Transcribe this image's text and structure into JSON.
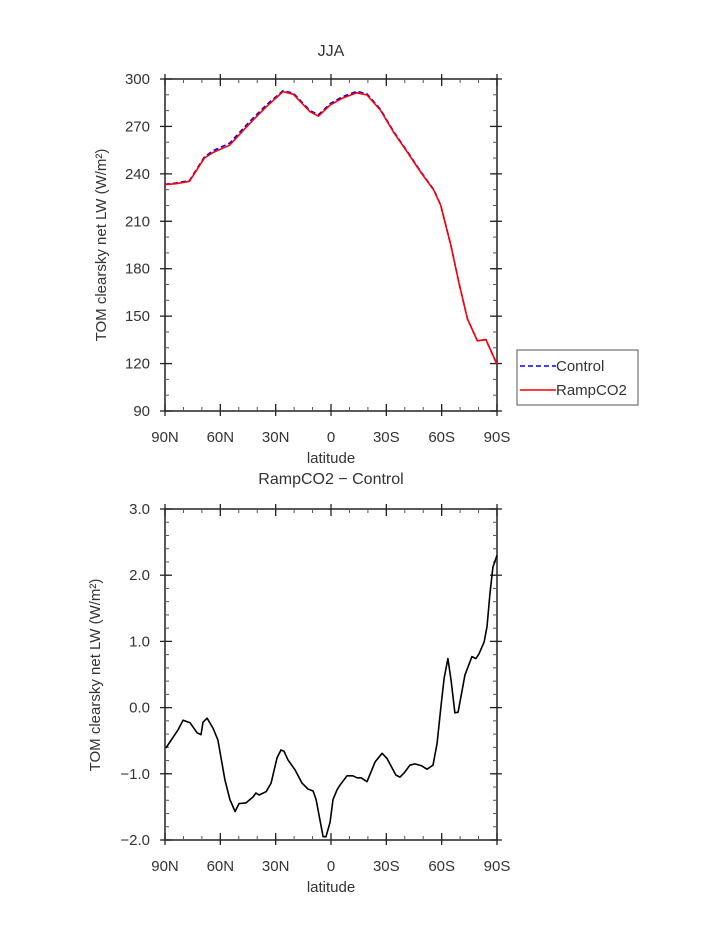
{
  "chart_data": [
    {
      "type": "line",
      "title": "JJA",
      "xlabel": "latitude",
      "ylabel": "TOM clearsky net LW (W/m²)",
      "xlim": [
        90,
        -90
      ],
      "ylim": [
        90,
        300
      ],
      "xticks": [
        90,
        60,
        30,
        0,
        -30,
        -60,
        -90
      ],
      "xtick_labels": [
        "90N",
        "60N",
        "30N",
        "0",
        "30S",
        "60S",
        "90S"
      ],
      "yticks": [
        90,
        120,
        150,
        180,
        210,
        240,
        270,
        300
      ],
      "ytick_labels": [
        "90",
        "120",
        "150",
        "180",
        "210",
        "240",
        "270",
        "300"
      ],
      "legend_position": "right",
      "grid": false,
      "x": [
        90,
        84,
        76.7,
        68.6,
        64,
        55,
        44,
        35,
        26,
        20.4,
        11.4,
        6.8,
        0.5,
        -5.9,
        -14,
        -19.5,
        -26.8,
        -34,
        -41.3,
        -48.6,
        -55.8,
        -59.5,
        -65,
        -69.5,
        -74,
        -79.4,
        -84,
        -90
      ],
      "series": [
        {
          "name": "Control",
          "color": "#0000ff",
          "dash": "dashed",
          "values": [
            233.4,
            234.2,
            235.8,
            250.8,
            254.6,
            259.4,
            273.2,
            283.6,
            292.6,
            291.0,
            280.0,
            277.4,
            284.4,
            288.6,
            292.2,
            290.6,
            280.9,
            266.7,
            254.3,
            241.6,
            229.9,
            220.3,
            194.8,
            170.5,
            148.2,
            134.4,
            135.2,
            119.4
          ]
        },
        {
          "name": "RampCO2",
          "color": "#ff0000",
          "dash": "solid",
          "values": [
            233.2,
            233.8,
            235.3,
            250.1,
            253.5,
            258.1,
            271.9,
            282.5,
            292.0,
            290.3,
            279.3,
            276.5,
            283.5,
            287.7,
            291.3,
            289.9,
            280.3,
            266.2,
            253.9,
            241.2,
            229.6,
            220.1,
            194.7,
            170.4,
            148.2,
            134.4,
            135.1,
            119.7
          ]
        }
      ]
    },
    {
      "type": "line",
      "title": "RampCO2 − Control",
      "xlabel": "latitude",
      "ylabel": "TOM clearsky net LW (W/m²)",
      "xlim": [
        90,
        -90
      ],
      "ylim": [
        -2.0,
        3.0
      ],
      "xticks": [
        90,
        60,
        30,
        0,
        -30,
        -60,
        -90
      ],
      "xtick_labels": [
        "90N",
        "60N",
        "30N",
        "0",
        "30S",
        "60S",
        "90S"
      ],
      "yticks": [
        -2.0,
        -1.0,
        0.0,
        1.0,
        2.0,
        3.0
      ],
      "ytick_labels": [
        "−2.0",
        "−1.0",
        "0.0",
        "1.0",
        "2.0",
        "3.0"
      ],
      "grid": false,
      "x": [
        89.5,
        83,
        80.2,
        76.4,
        72.6,
        70.5,
        69.4,
        67.2,
        64,
        61.3,
        57.5,
        54.8,
        52,
        49.9,
        46.1,
        42.3,
        40.7,
        39,
        35.2,
        32.5,
        29.3,
        27.1,
        25.5,
        23.3,
        19.5,
        15.7,
        12.5,
        9.7,
        8.1,
        4.3,
        2.7,
        0.5,
        -1.1,
        -3.3,
        -4.9,
        -8.7,
        -11.9,
        -14.1,
        -16.3,
        -19.5,
        -23.9,
        -27.7,
        -30.4,
        -35.2,
        -37.4,
        -39.6,
        -42.8,
        -45.5,
        -49.3,
        -52,
        -55.3,
        -57.5,
        -59.6,
        -61.3,
        -63.4,
        -65.1,
        -67.2,
        -68.9,
        -72.6,
        -76.4,
        -78.6,
        -80.2,
        -83,
        -84.6,
        -86.2,
        -87.8,
        -90
      ],
      "series": [
        {
          "name": "RampCO2 - Control",
          "color": "#000000",
          "values": [
            -0.61,
            -0.34,
            -0.19,
            -0.23,
            -0.38,
            -0.41,
            -0.22,
            -0.16,
            -0.31,
            -0.49,
            -1.09,
            -1.39,
            -1.57,
            -1.45,
            -1.44,
            -1.35,
            -1.29,
            -1.32,
            -1.27,
            -1.14,
            -0.76,
            -0.64,
            -0.66,
            -0.79,
            -0.94,
            -1.14,
            -1.23,
            -1.26,
            -1.39,
            -1.95,
            -1.95,
            -1.73,
            -1.39,
            -1.24,
            -1.17,
            -1.03,
            -1.03,
            -1.06,
            -1.06,
            -1.12,
            -0.82,
            -0.69,
            -0.77,
            -1.02,
            -1.05,
            -0.99,
            -0.87,
            -0.85,
            -0.88,
            -0.93,
            -0.87,
            -0.54,
            0.01,
            0.44,
            0.74,
            0.41,
            -0.08,
            -0.07,
            0.49,
            0.77,
            0.74,
            0.81,
            0.99,
            1.22,
            1.73,
            2.12,
            2.3
          ]
        }
      ]
    }
  ]
}
